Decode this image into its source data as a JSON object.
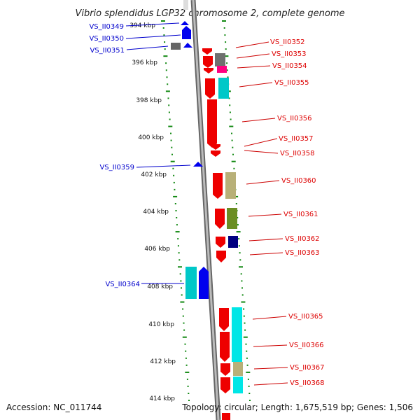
{
  "title": "Vibrio splendidus LGP32 chromosome 2, complete genome",
  "footer": {
    "accession": "Accession: NC_011744",
    "topology": "Topology: circular; Length: 1,675,519 bp; Genes: 1,506"
  },
  "colors": {
    "forward": "#ff0000",
    "reverse": "#0000ff",
    "backbone": "#888888",
    "tick": "#118811"
  },
  "ticks": [
    "394 kbp",
    "396 kbp",
    "398 kbp",
    "400 kbp",
    "402 kbp",
    "404 kbp",
    "406 kbp",
    "408 kbp",
    "410 kbp",
    "412 kbp",
    "414 kbp"
  ],
  "genes": {
    "left": [
      "VS_II0349",
      "VS_II0350",
      "VS_II0351",
      "VS_II0359",
      "VS_II0364"
    ],
    "right": [
      "VS_II0352",
      "VS_II0353",
      "VS_II0354",
      "VS_II0355",
      "VS_II0356",
      "VS_II0357",
      "VS_II0358",
      "VS_II0360",
      "VS_II0361",
      "VS_II0362",
      "VS_II0363",
      "VS_II0365",
      "VS_II0366",
      "VS_II0367",
      "VS_II0368"
    ]
  }
}
